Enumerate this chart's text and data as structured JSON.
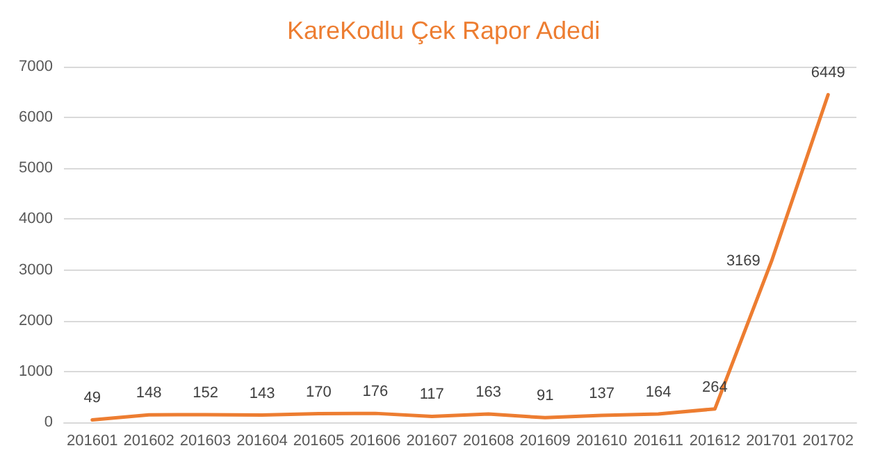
{
  "chart_data": {
    "type": "line",
    "title": "KareKodlu Çek Rapor Adedi",
    "categories": [
      "201601",
      "201602",
      "201603",
      "201604",
      "201605",
      "201606",
      "201607",
      "201608",
      "201609",
      "201610",
      "201611",
      "201612",
      "201701",
      "201702"
    ],
    "series": [
      {
        "color": "#ed7d31",
        "values": [
          49,
          148,
          152,
          143,
          170,
          176,
          117,
          163,
          91,
          137,
          164,
          264,
          3169,
          6449
        ]
      }
    ],
    "ylim": [
      0,
      7000
    ],
    "yticks": [
      0,
      1000,
      2000,
      3000,
      4000,
      5000,
      6000,
      7000
    ],
    "grid": "y",
    "marker": "none",
    "line_style": "solid",
    "data_labels": true
  }
}
